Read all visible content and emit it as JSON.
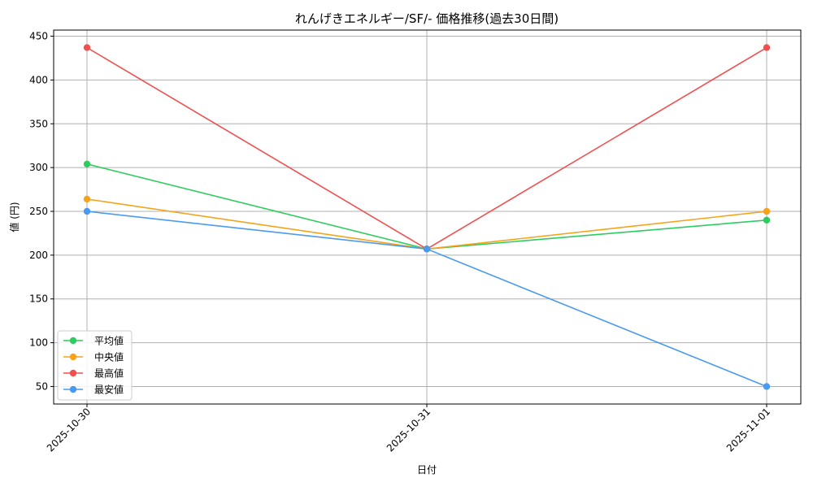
{
  "chart_data": {
    "type": "line",
    "title": "れんげきエネルギー/SF/- 価格推移(過去30日間)",
    "xlabel": "日付",
    "ylabel": "値 (円)",
    "x": [
      "2025-10-30",
      "2025-10-31",
      "2025-11-01"
    ],
    "ylim": [
      30,
      457
    ],
    "yticks": [
      50,
      100,
      150,
      200,
      250,
      300,
      350,
      400,
      450
    ],
    "grid": true,
    "legend_position": "lower-left",
    "series": [
      {
        "name": "平均値",
        "color": "#2ecc5f",
        "values": [
          304,
          207,
          240
        ]
      },
      {
        "name": "中央値",
        "color": "#f5a31a",
        "values": [
          264,
          207,
          250
        ]
      },
      {
        "name": "最高値",
        "color": "#f05050",
        "values": [
          437,
          207,
          437
        ]
      },
      {
        "name": "最安値",
        "color": "#4a9af0",
        "values": [
          250,
          207,
          50
        ]
      }
    ]
  }
}
